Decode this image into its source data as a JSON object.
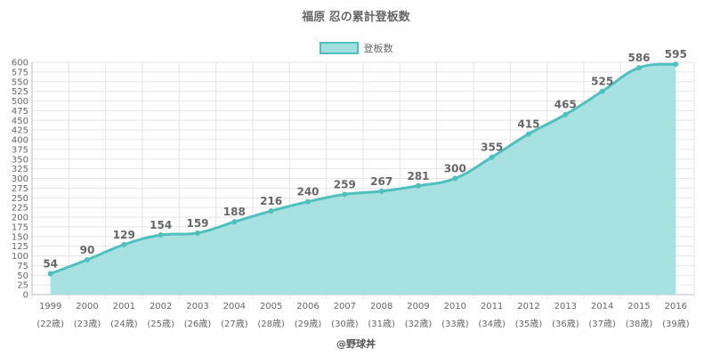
{
  "chart_data": {
    "type": "area",
    "title": "福原 忍の累計登板数",
    "legend": "登板数",
    "legend_position": "top",
    "credit": "@野球丼",
    "categories": [
      "1999",
      "2000",
      "2001",
      "2002",
      "2003",
      "2004",
      "2005",
      "2006",
      "2007",
      "2008",
      "2009",
      "2010",
      "2011",
      "2012",
      "2013",
      "2014",
      "2015",
      "2016"
    ],
    "ages": [
      "(22歳)",
      "(23歳)",
      "(24歳)",
      "(25歳)",
      "(26歳)",
      "(27歳)",
      "(28歳)",
      "(29歳)",
      "(30歳)",
      "(31歳)",
      "(32歳)",
      "(33歳)",
      "(34歳)",
      "(35歳)",
      "(36歳)",
      "(37歳)",
      "(38歳)",
      "(39歳)"
    ],
    "series": [
      {
        "name": "登板数",
        "values": [
          54,
          90,
          129,
          154,
          159,
          188,
          216,
          240,
          259,
          267,
          281,
          300,
          355,
          415,
          465,
          525,
          586,
          595
        ]
      }
    ],
    "ylim": [
      0,
      600
    ],
    "ystep": 25,
    "grid": true,
    "colors": {
      "fill": "#a3dfdf",
      "line": "#50c0bd",
      "grid": "#e5e5e5",
      "axis": "#bbbbbb"
    }
  }
}
